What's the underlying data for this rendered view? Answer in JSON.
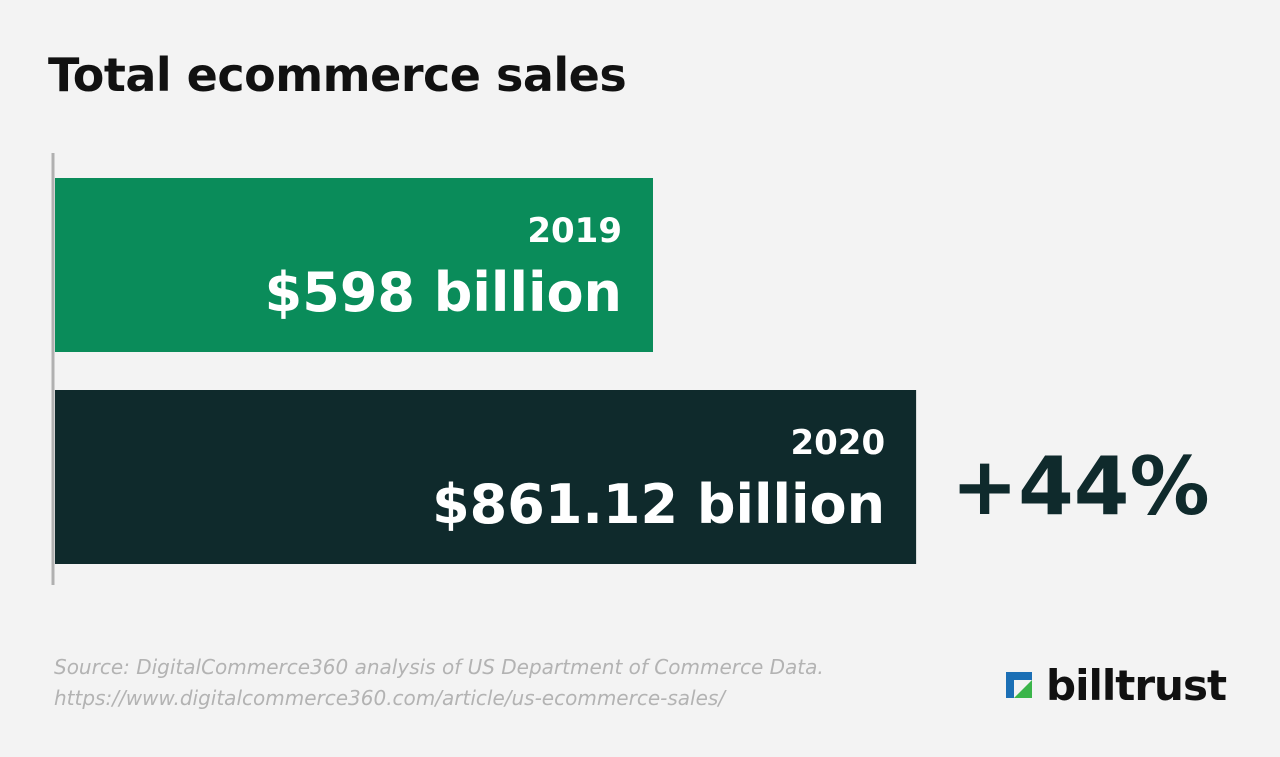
{
  "chart_data": {
    "type": "bar",
    "orientation": "horizontal",
    "title": "Total ecommerce sales",
    "categories": [
      "2019",
      "2020"
    ],
    "values": [
      598,
      861.12
    ],
    "value_labels": [
      "$598 billion",
      "$861.12 billion"
    ],
    "annotation": "+44%",
    "colors": [
      "#0a8c5a",
      "#0f2a2c"
    ],
    "xlim": [
      0,
      1000
    ],
    "grid": false,
    "legend": "none"
  },
  "footer": {
    "source_line1": "Source: DigitalCommerce360 analysis of US Department of Commerce Data.",
    "source_line2": "https://www.digitalcommerce360.com/article/us-ecommerce-sales/"
  },
  "brand": {
    "logo_text": "billtrust",
    "logo_colors": [
      "#1b6fb5",
      "#3bb54a"
    ]
  }
}
